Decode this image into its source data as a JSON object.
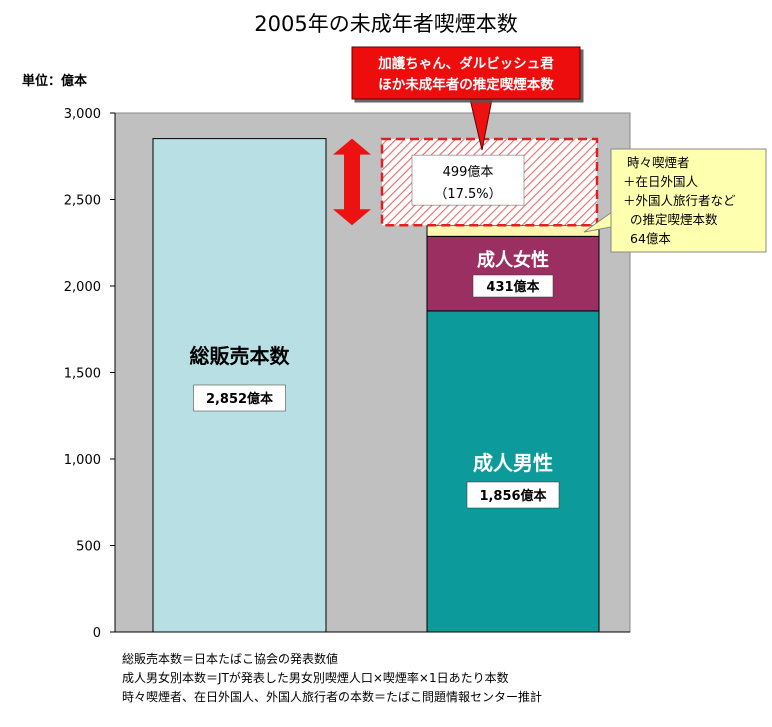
{
  "chart_data": {
    "type": "bar",
    "title": "2005年の未成年者喫煙本数",
    "unit_label": "単位：億本",
    "ylim": [
      0,
      3000
    ],
    "y_ticks": [
      "0",
      "500",
      "1,000",
      "1,500",
      "2,000",
      "2,500",
      "3,000"
    ],
    "y_tick_values": [
      0,
      500,
      1000,
      1500,
      2000,
      2500,
      3000
    ],
    "grid": false,
    "bars": [
      {
        "segments": [
          {
            "name": "総販売本数",
            "value": 2852,
            "value_label": "2,852億本",
            "color": "#b8dfe3"
          }
        ]
      },
      {
        "segments": [
          {
            "name": "成人男性",
            "value": 1856,
            "value_label": "1,856億本",
            "color": "#0c9a9a"
          },
          {
            "name": "成人女性",
            "value": 431,
            "value_label": "431億本",
            "color": "#9c2f62"
          },
          {
            "name": "",
            "value": 64,
            "value_label": "",
            "color": "#fff5b0"
          },
          {
            "name": "",
            "value": 499,
            "value_label": "499億本\n（17.5%）",
            "color": "#f08080",
            "hatched": true,
            "dashed_outline": true
          }
        ]
      }
    ],
    "callouts": {
      "minors": {
        "lines": [
          "加護ちゃん、ダルビッシュ君",
          "ほか未成年者の推定喫煙本数"
        ],
        "bg": "#ee1111",
        "color": "#ffffff"
      },
      "occasional": {
        "lines": [
          "時々喫煙者",
          "＋在日外国人",
          "＋外国人旅行者などの推定喫煙本数",
          "64億本"
        ],
        "bg": "#ffffb0"
      }
    },
    "minors_box_lines": [
      "499億本",
      "（17.5%）"
    ],
    "female_name": "成人女性",
    "female_value": "431億本",
    "male_name": "成人男性",
    "male_value": "1,856億本",
    "total_name": "総販売本数",
    "total_value": "2,852億本",
    "occasional_lines": [
      "時々喫煙者",
      "＋在日外国人",
      "＋外国人旅行者など",
      "の推定喫煙本数",
      "64億本"
    ]
  },
  "footnotes": [
    "総販売本数＝日本たばこ協会の発表数値",
    "成人男女別本数＝JTが発表した男女別喫煙人口×喫煙率×1日あたり本数",
    "時々喫煙者、在日外国人、外国人旅行者の本数＝たばこ問題情報センター推計"
  ],
  "colors": {
    "plot_bg": "#c0c0c0",
    "arrow": "#ee1111"
  }
}
